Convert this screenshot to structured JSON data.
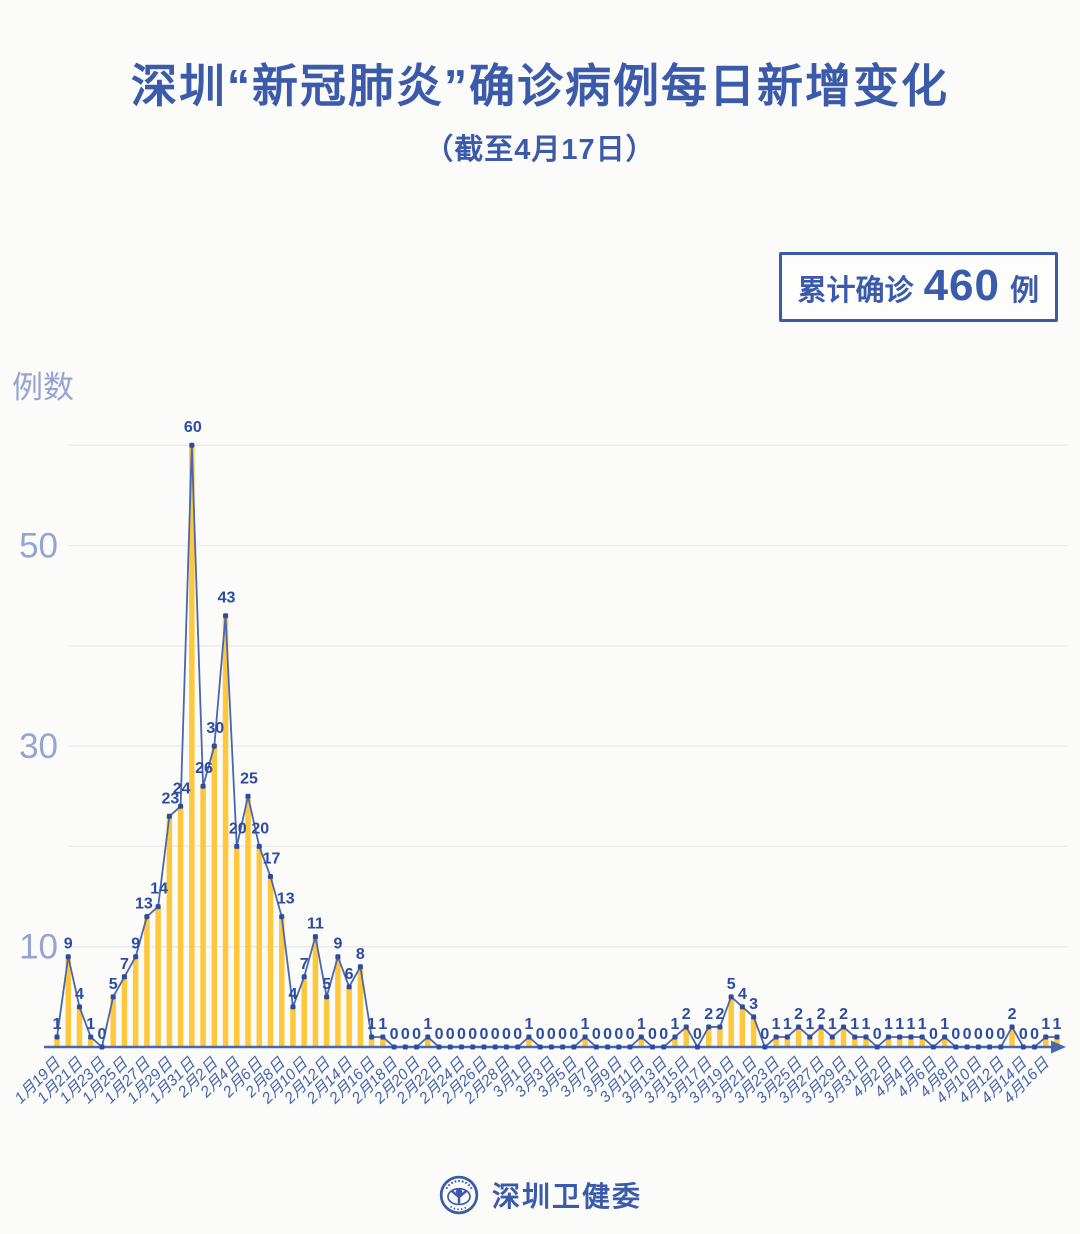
{
  "header": {
    "title": "深圳“新冠肺炎”确诊病例每日新增变化",
    "subtitle": "（截至4月17日）"
  },
  "summary_badge": {
    "prefix": "累计确诊",
    "value": "460",
    "unit": "例"
  },
  "footer": {
    "org_name": "深圳卫健委"
  },
  "colors": {
    "primary_blue": "#3b5aa9",
    "dark_blue": "#2d4ba0",
    "line_blue": "#4a67ae",
    "bar_yellow": "#ffc83c",
    "grid": "#e9e9ee",
    "axis_label": "#97a3d2",
    "date_label": "#4563ae"
  },
  "chart_data": {
    "type": "bar",
    "overlay": "line",
    "title": "深圳“新冠肺炎”确诊病例每日新增变化（截至4月17日）",
    "ylabel": "例数",
    "xlabel": "",
    "ylim": [
      0,
      62
    ],
    "yticks_labeled": [
      10,
      30,
      50
    ],
    "gridlines": [
      10,
      20,
      30,
      40,
      50,
      60
    ],
    "x_tick_every": 2,
    "legend": "none",
    "grid": "horizontal",
    "x": [
      "1月19日",
      "1月20日",
      "1月21日",
      "1月22日",
      "1月23日",
      "1月24日",
      "1月25日",
      "1月26日",
      "1月27日",
      "1月28日",
      "1月29日",
      "1月30日",
      "1月31日",
      "2月1日",
      "2月2日",
      "2月3日",
      "2月4日",
      "2月5日",
      "2月6日",
      "2月7日",
      "2月8日",
      "2月9日",
      "2月10日",
      "2月11日",
      "2月12日",
      "2月13日",
      "2月14日",
      "2月15日",
      "2月16日",
      "2月17日",
      "2月18日",
      "2月19日",
      "2月20日",
      "2月21日",
      "2月22日",
      "2月23日",
      "2月24日",
      "2月25日",
      "2月26日",
      "2月27日",
      "2月28日",
      "2月29日",
      "3月1日",
      "3月2日",
      "3月3日",
      "3月4日",
      "3月5日",
      "3月6日",
      "3月7日",
      "3月8日",
      "3月9日",
      "3月10日",
      "3月11日",
      "3月12日",
      "3月13日",
      "3月14日",
      "3月15日",
      "3月16日",
      "3月17日",
      "3月18日",
      "3月19日",
      "3月20日",
      "3月21日",
      "3月22日",
      "3月23日",
      "3月24日",
      "3月25日",
      "3月26日",
      "3月27日",
      "3月28日",
      "3月29日",
      "3月30日",
      "3月31日",
      "4月1日",
      "4月2日",
      "4月3日",
      "4月4日",
      "4月5日",
      "4月6日",
      "4月7日",
      "4月8日",
      "4月9日",
      "4月10日",
      "4月11日",
      "4月12日",
      "4月13日",
      "4月14日",
      "4月15日",
      "4月16日",
      "4月17日"
    ],
    "values": [
      1,
      9,
      4,
      1,
      0,
      5,
      7,
      9,
      13,
      14,
      23,
      24,
      60,
      26,
      30,
      43,
      20,
      25,
      20,
      17,
      13,
      4,
      7,
      11,
      5,
      9,
      6,
      8,
      1,
      1,
      0,
      0,
      0,
      1,
      0,
      0,
      0,
      0,
      0,
      0,
      0,
      0,
      1,
      0,
      0,
      0,
      0,
      1,
      0,
      0,
      0,
      0,
      1,
      0,
      0,
      1,
      2,
      0,
      2,
      2,
      5,
      4,
      3,
      0,
      1,
      1,
      2,
      1,
      2,
      1,
      2,
      1,
      1,
      0,
      1,
      1,
      1,
      1,
      0,
      1,
      0,
      0,
      0,
      0,
      0,
      2,
      0,
      0,
      1,
      1
    ],
    "total": 460
  }
}
